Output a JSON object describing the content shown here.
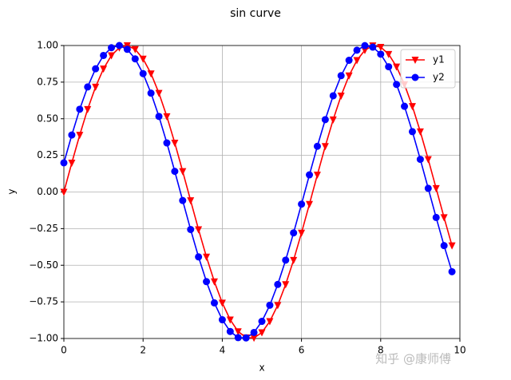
{
  "chart_data": {
    "type": "line",
    "title": "sin curve",
    "xlabel": "x",
    "ylabel": "y",
    "x": [
      0,
      0.2,
      0.4,
      0.6,
      0.8,
      1,
      1.2,
      1.4,
      1.6,
      1.8,
      2,
      2.2,
      2.4,
      2.6,
      2.8,
      3,
      3.2,
      3.4,
      3.6,
      3.8,
      4,
      4.2,
      4.4,
      4.6,
      4.8,
      5,
      5.2,
      5.4,
      5.6,
      5.8,
      6,
      6.2,
      6.4,
      6.6,
      6.8,
      7,
      7.2,
      7.4,
      7.6,
      7.8,
      8,
      8.2,
      8.4,
      8.6,
      8.8,
      9,
      9.2,
      9.4,
      9.6,
      9.8
    ],
    "series": [
      {
        "name": "y1",
        "color": "#ff0000",
        "marker": "v",
        "values": [
          0,
          0.199,
          0.389,
          0.565,
          0.717,
          0.841,
          0.932,
          0.985,
          1.0,
          0.974,
          0.909,
          0.808,
          0.675,
          0.516,
          0.335,
          0.141,
          -0.058,
          -0.256,
          -0.443,
          -0.612,
          -0.757,
          -0.872,
          -0.952,
          -0.994,
          -0.996,
          -0.959,
          -0.883,
          -0.773,
          -0.631,
          -0.465,
          -0.279,
          -0.083,
          0.117,
          0.312,
          0.494,
          0.657,
          0.794,
          0.899,
          0.968,
          0.999,
          0.989,
          0.941,
          0.855,
          0.734,
          0.585,
          0.412,
          0.223,
          0.025,
          -0.174,
          -0.366
        ]
      },
      {
        "name": "y2",
        "color": "#0000ff",
        "marker": "o",
        "values": [
          0.199,
          0.389,
          0.565,
          0.717,
          0.841,
          0.932,
          0.985,
          1.0,
          0.974,
          0.909,
          0.808,
          0.675,
          0.516,
          0.335,
          0.141,
          -0.058,
          -0.256,
          -0.443,
          -0.612,
          -0.757,
          -0.872,
          -0.952,
          -0.994,
          -0.996,
          -0.959,
          -0.883,
          -0.773,
          -0.631,
          -0.465,
          -0.279,
          -0.083,
          0.117,
          0.312,
          0.494,
          0.657,
          0.794,
          0.899,
          0.968,
          0.999,
          0.989,
          0.941,
          0.855,
          0.734,
          0.585,
          0.412,
          0.223,
          0.025,
          -0.174,
          -0.366,
          -0.544
        ]
      }
    ],
    "xlim": [
      0,
      10
    ],
    "ylim": [
      -1,
      1
    ],
    "xticks": [
      0,
      2,
      4,
      6,
      8,
      10
    ],
    "yticks": [
      {
        "value": -1,
        "label": "−1.00"
      },
      {
        "value": -0.75,
        "label": "−0.75"
      },
      {
        "value": -0.5,
        "label": "−0.50"
      },
      {
        "value": -0.25,
        "label": "−0.25"
      },
      {
        "value": 0,
        "label": "0.00"
      },
      {
        "value": 0.25,
        "label": "0.25"
      },
      {
        "value": 0.5,
        "label": "0.50"
      },
      {
        "value": 0.75,
        "label": "0.75"
      },
      {
        "value": 1,
        "label": "1.00"
      }
    ],
    "grid": true,
    "legend": "upper right"
  },
  "watermark": "知乎 @康师傅"
}
